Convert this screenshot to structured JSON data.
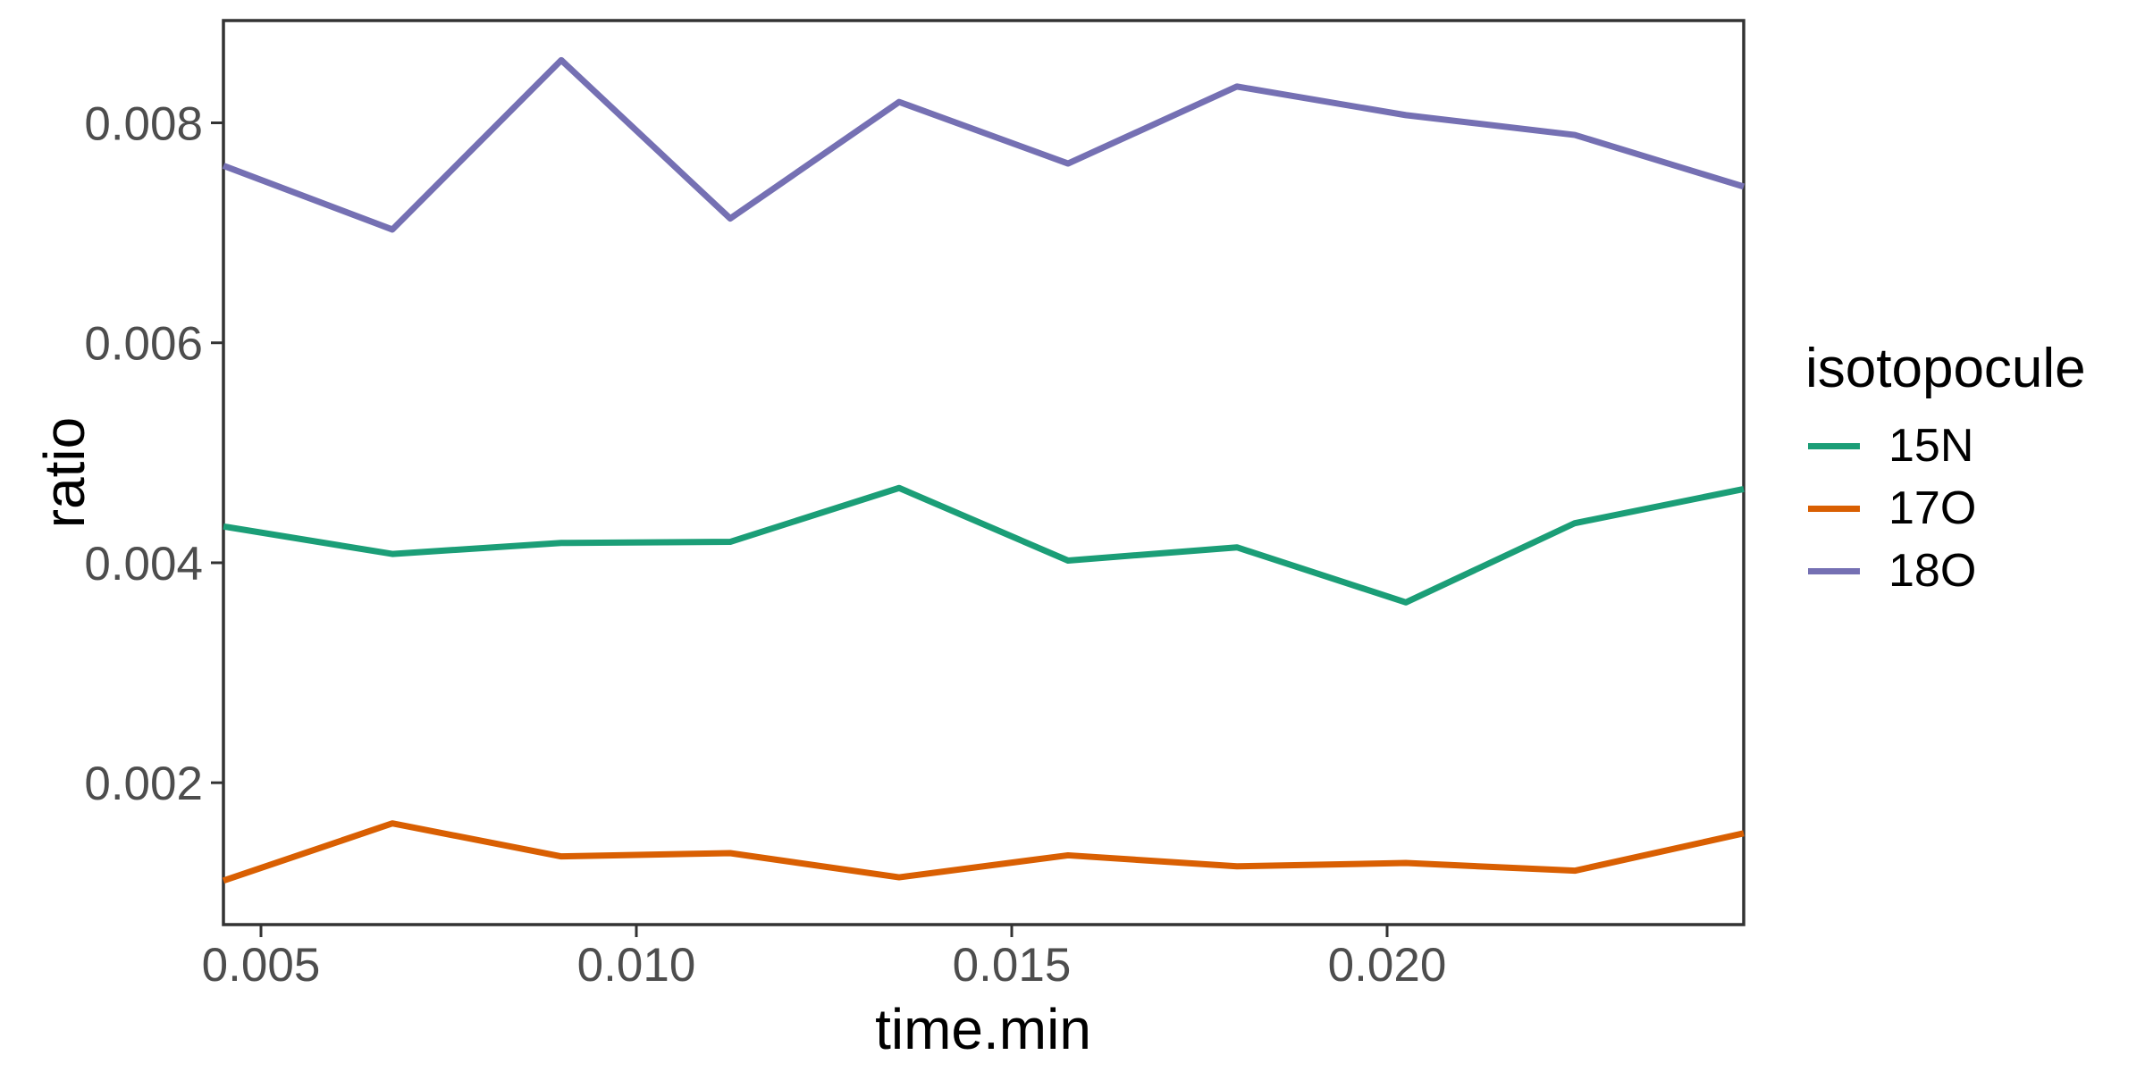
{
  "chart_data": {
    "type": "line",
    "title": "",
    "xlabel": "time.min",
    "ylabel": "ratio",
    "x": [
      0.0045,
      0.00675,
      0.009,
      0.01125,
      0.0135,
      0.01575,
      0.018,
      0.02025,
      0.0225,
      0.02475
    ],
    "series": [
      {
        "name": "15N",
        "color": "#1B9E77",
        "values": [
          0.00433,
          0.00408,
          0.00418,
          0.00419,
          0.00468,
          0.00402,
          0.00414,
          0.00364,
          0.00436,
          0.00467
        ]
      },
      {
        "name": "17O",
        "color": "#D95F02",
        "values": [
          0.00111,
          0.00163,
          0.00133,
          0.00136,
          0.00114,
          0.00134,
          0.00124,
          0.00127,
          0.0012,
          0.00154
        ]
      },
      {
        "name": "18O",
        "color": "#7570B3",
        "values": [
          0.00761,
          0.00703,
          0.00857,
          0.00713,
          0.00819,
          0.00763,
          0.00833,
          0.00807,
          0.00789,
          0.00742
        ]
      }
    ],
    "legend": {
      "title": "isotopocule",
      "position": "right"
    },
    "axes": {
      "xlim": [
        0.0045,
        0.02475
      ],
      "ylim": [
        0.00071,
        0.00893
      ],
      "xticks": {
        "values": [
          0.005,
          0.01,
          0.015,
          0.02
        ],
        "labels": [
          "0.005",
          "0.010",
          "0.015",
          "0.020"
        ]
      },
      "yticks": {
        "values": [
          0.002,
          0.004,
          0.006,
          0.008
        ],
        "labels": [
          "0.002",
          "0.004",
          "0.006",
          "0.008"
        ]
      },
      "grid": false
    },
    "styles": {
      "background": "#FFFFFF",
      "panel_border_color": "#333333",
      "tick_color": "#333333",
      "tick_label_color": "#4D4D4D",
      "title_color": "#000000",
      "line_width": 7
    }
  }
}
